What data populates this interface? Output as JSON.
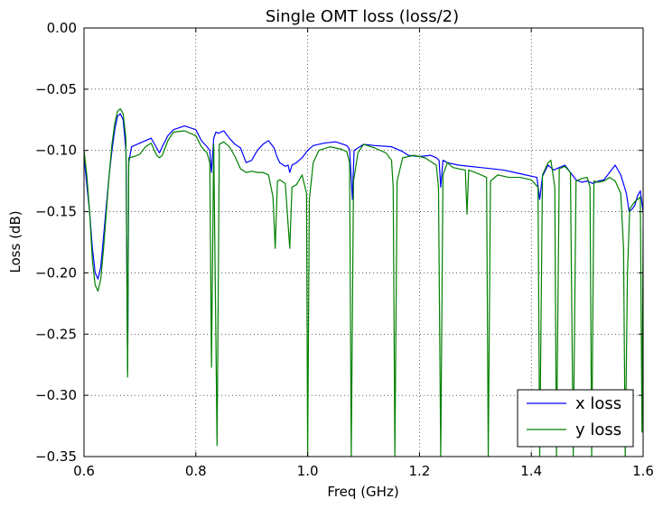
{
  "chart_data": {
    "type": "line",
    "title": "Single OMT loss (loss/2)",
    "xlabel": "Freq (GHz)",
    "ylabel": "Loss (dB)",
    "xlim": [
      0.6,
      1.6
    ],
    "ylim": [
      -0.35,
      0.0
    ],
    "xticks": [
      "0.6",
      "0.8",
      "1.0",
      "1.2",
      "1.4",
      "1.6"
    ],
    "yticks": [
      "0.00",
      "−0.05",
      "−0.10",
      "−0.15",
      "−0.20",
      "−0.25",
      "−0.30",
      "−0.35"
    ],
    "grid": true,
    "legend_position": "lower-right",
    "series": [
      {
        "name": "x loss",
        "color": "#0000ff",
        "points": [
          [
            0.6,
            -0.105
          ],
          [
            0.605,
            -0.128
          ],
          [
            0.61,
            -0.15
          ],
          [
            0.615,
            -0.18
          ],
          [
            0.62,
            -0.2
          ],
          [
            0.625,
            -0.205
          ],
          [
            0.63,
            -0.195
          ],
          [
            0.635,
            -0.17
          ],
          [
            0.64,
            -0.145
          ],
          [
            0.645,
            -0.12
          ],
          [
            0.65,
            -0.1
          ],
          [
            0.655,
            -0.083
          ],
          [
            0.66,
            -0.072
          ],
          [
            0.665,
            -0.07
          ],
          [
            0.67,
            -0.075
          ],
          [
            0.675,
            -0.1
          ],
          [
            0.678,
            -0.28
          ],
          [
            0.68,
            -0.11
          ],
          [
            0.685,
            -0.097
          ],
          [
            0.7,
            -0.094
          ],
          [
            0.72,
            -0.09
          ],
          [
            0.73,
            -0.098
          ],
          [
            0.735,
            -0.102
          ],
          [
            0.74,
            -0.097
          ],
          [
            0.75,
            -0.088
          ],
          [
            0.76,
            -0.083
          ],
          [
            0.78,
            -0.08
          ],
          [
            0.8,
            -0.083
          ],
          [
            0.81,
            -0.092
          ],
          [
            0.82,
            -0.097
          ],
          [
            0.825,
            -0.1
          ],
          [
            0.828,
            -0.118
          ],
          [
            0.832,
            -0.09
          ],
          [
            0.836,
            -0.085
          ],
          [
            0.84,
            -0.086
          ],
          [
            0.85,
            -0.084
          ],
          [
            0.86,
            -0.09
          ],
          [
            0.87,
            -0.095
          ],
          [
            0.88,
            -0.098
          ],
          [
            0.89,
            -0.11
          ],
          [
            0.9,
            -0.108
          ],
          [
            0.91,
            -0.1
          ],
          [
            0.92,
            -0.095
          ],
          [
            0.93,
            -0.092
          ],
          [
            0.94,
            -0.098
          ],
          [
            0.945,
            -0.105
          ],
          [
            0.95,
            -0.11
          ],
          [
            0.96,
            -0.113
          ],
          [
            0.965,
            -0.112
          ],
          [
            0.968,
            -0.118
          ],
          [
            0.972,
            -0.112
          ],
          [
            0.98,
            -0.11
          ],
          [
            0.99,
            -0.106
          ],
          [
            1.0,
            -0.1
          ],
          [
            1.01,
            -0.096
          ],
          [
            1.03,
            -0.094
          ],
          [
            1.05,
            -0.093
          ],
          [
            1.07,
            -0.096
          ],
          [
            1.075,
            -0.099
          ],
          [
            1.08,
            -0.14
          ],
          [
            1.083,
            -0.1
          ],
          [
            1.09,
            -0.098
          ],
          [
            1.1,
            -0.095
          ],
          [
            1.12,
            -0.096
          ],
          [
            1.15,
            -0.097
          ],
          [
            1.16,
            -0.099
          ],
          [
            1.17,
            -0.101
          ],
          [
            1.18,
            -0.104
          ],
          [
            1.2,
            -0.105
          ],
          [
            1.22,
            -0.104
          ],
          [
            1.23,
            -0.106
          ],
          [
            1.235,
            -0.108
          ],
          [
            1.238,
            -0.13
          ],
          [
            1.242,
            -0.108
          ],
          [
            1.25,
            -0.11
          ],
          [
            1.27,
            -0.112
          ],
          [
            1.29,
            -0.113
          ],
          [
            1.31,
            -0.114
          ],
          [
            1.33,
            -0.115
          ],
          [
            1.35,
            -0.116
          ],
          [
            1.37,
            -0.118
          ],
          [
            1.39,
            -0.12
          ],
          [
            1.41,
            -0.122
          ],
          [
            1.415,
            -0.14
          ],
          [
            1.42,
            -0.121
          ],
          [
            1.43,
            -0.112
          ],
          [
            1.44,
            -0.116
          ],
          [
            1.45,
            -0.114
          ],
          [
            1.46,
            -0.112
          ],
          [
            1.47,
            -0.118
          ],
          [
            1.48,
            -0.124
          ],
          [
            1.49,
            -0.126
          ],
          [
            1.5,
            -0.125
          ],
          [
            1.51,
            -0.127
          ],
          [
            1.52,
            -0.125
          ],
          [
            1.53,
            -0.124
          ],
          [
            1.54,
            -0.118
          ],
          [
            1.55,
            -0.112
          ],
          [
            1.56,
            -0.12
          ],
          [
            1.57,
            -0.135
          ],
          [
            1.575,
            -0.15
          ],
          [
            1.58,
            -0.148
          ],
          [
            1.585,
            -0.145
          ],
          [
            1.59,
            -0.137
          ],
          [
            1.595,
            -0.133
          ],
          [
            1.6,
            -0.15
          ]
        ]
      },
      {
        "name": "y loss",
        "color": "#008000",
        "points": [
          [
            0.6,
            -0.1
          ],
          [
            0.605,
            -0.12
          ],
          [
            0.61,
            -0.15
          ],
          [
            0.615,
            -0.19
          ],
          [
            0.62,
            -0.21
          ],
          [
            0.625,
            -0.215
          ],
          [
            0.63,
            -0.205
          ],
          [
            0.635,
            -0.18
          ],
          [
            0.64,
            -0.15
          ],
          [
            0.645,
            -0.12
          ],
          [
            0.65,
            -0.095
          ],
          [
            0.655,
            -0.078
          ],
          [
            0.66,
            -0.068
          ],
          [
            0.665,
            -0.066
          ],
          [
            0.67,
            -0.07
          ],
          [
            0.675,
            -0.09
          ],
          [
            0.678,
            -0.285
          ],
          [
            0.68,
            -0.106
          ],
          [
            0.69,
            -0.105
          ],
          [
            0.7,
            -0.103
          ],
          [
            0.71,
            -0.097
          ],
          [
            0.72,
            -0.094
          ],
          [
            0.73,
            -0.104
          ],
          [
            0.735,
            -0.106
          ],
          [
            0.74,
            -0.104
          ],
          [
            0.75,
            -0.092
          ],
          [
            0.76,
            -0.085
          ],
          [
            0.78,
            -0.084
          ],
          [
            0.8,
            -0.088
          ],
          [
            0.81,
            -0.097
          ],
          [
            0.82,
            -0.102
          ],
          [
            0.825,
            -0.11
          ],
          [
            0.828,
            -0.277
          ],
          [
            0.832,
            -0.095
          ],
          [
            0.838,
            -0.341
          ],
          [
            0.842,
            -0.095
          ],
          [
            0.85,
            -0.093
          ],
          [
            0.86,
            -0.097
          ],
          [
            0.87,
            -0.105
          ],
          [
            0.88,
            -0.115
          ],
          [
            0.89,
            -0.118
          ],
          [
            0.9,
            -0.117
          ],
          [
            0.91,
            -0.118
          ],
          [
            0.92,
            -0.118
          ],
          [
            0.93,
            -0.12
          ],
          [
            0.938,
            -0.138
          ],
          [
            0.942,
            -0.18
          ],
          [
            0.946,
            -0.125
          ],
          [
            0.95,
            -0.124
          ],
          [
            0.96,
            -0.127
          ],
          [
            0.968,
            -0.18
          ],
          [
            0.972,
            -0.13
          ],
          [
            0.98,
            -0.128
          ],
          [
            0.99,
            -0.12
          ],
          [
            0.998,
            -0.135
          ],
          [
            1.0,
            -0.35
          ],
          [
            1.003,
            -0.14
          ],
          [
            1.01,
            -0.11
          ],
          [
            1.02,
            -0.1
          ],
          [
            1.04,
            -0.097
          ],
          [
            1.06,
            -0.099
          ],
          [
            1.07,
            -0.101
          ],
          [
            1.075,
            -0.11
          ],
          [
            1.078,
            -0.35
          ],
          [
            1.082,
            -0.125
          ],
          [
            1.09,
            -0.102
          ],
          [
            1.1,
            -0.095
          ],
          [
            1.12,
            -0.098
          ],
          [
            1.14,
            -0.102
          ],
          [
            1.15,
            -0.108
          ],
          [
            1.153,
            -0.13
          ],
          [
            1.156,
            -0.35
          ],
          [
            1.16,
            -0.125
          ],
          [
            1.17,
            -0.106
          ],
          [
            1.19,
            -0.104
          ],
          [
            1.21,
            -0.106
          ],
          [
            1.23,
            -0.112
          ],
          [
            1.234,
            -0.13
          ],
          [
            1.238,
            -0.35
          ],
          [
            1.242,
            -0.12
          ],
          [
            1.25,
            -0.11
          ],
          [
            1.26,
            -0.114
          ],
          [
            1.27,
            -0.115
          ],
          [
            1.282,
            -0.116
          ],
          [
            1.285,
            -0.152
          ],
          [
            1.288,
            -0.116
          ],
          [
            1.3,
            -0.118
          ],
          [
            1.31,
            -0.12
          ],
          [
            1.32,
            -0.122
          ],
          [
            1.323,
            -0.35
          ],
          [
            1.327,
            -0.125
          ],
          [
            1.34,
            -0.12
          ],
          [
            1.36,
            -0.122
          ],
          [
            1.38,
            -0.122
          ],
          [
            1.4,
            -0.124
          ],
          [
            1.412,
            -0.13
          ],
          [
            1.415,
            -0.35
          ],
          [
            1.42,
            -0.12
          ],
          [
            1.43,
            -0.11
          ],
          [
            1.435,
            -0.108
          ],
          [
            1.442,
            -0.13
          ],
          [
            1.445,
            -0.35
          ],
          [
            1.45,
            -0.115
          ],
          [
            1.46,
            -0.113
          ],
          [
            1.47,
            -0.118
          ],
          [
            1.475,
            -0.35
          ],
          [
            1.48,
            -0.125
          ],
          [
            1.49,
            -0.123
          ],
          [
            1.5,
            -0.122
          ],
          [
            1.505,
            -0.13
          ],
          [
            1.508,
            -0.35
          ],
          [
            1.512,
            -0.125
          ],
          [
            1.52,
            -0.126
          ],
          [
            1.53,
            -0.125
          ],
          [
            1.54,
            -0.122
          ],
          [
            1.55,
            -0.125
          ],
          [
            1.56,
            -0.135
          ],
          [
            1.565,
            -0.18
          ],
          [
            1.568,
            -0.35
          ],
          [
            1.572,
            -0.2
          ],
          [
            1.576,
            -0.148
          ],
          [
            1.58,
            -0.145
          ],
          [
            1.585,
            -0.142
          ],
          [
            1.59,
            -0.14
          ],
          [
            1.595,
            -0.138
          ],
          [
            1.598,
            -0.33
          ],
          [
            1.6,
            -0.165
          ]
        ]
      }
    ]
  }
}
